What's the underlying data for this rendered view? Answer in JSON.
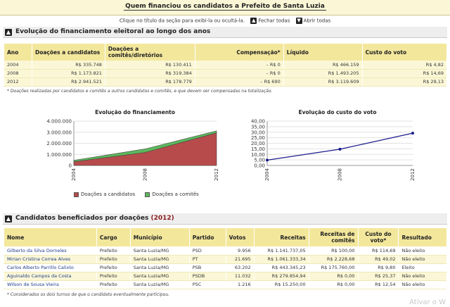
{
  "header": {
    "title": "Quem financiou os candidatos a Prefeito de Santa Luzia"
  },
  "hint": {
    "text": "Clique no título da seção para exibi-la ou ocultá-la.",
    "close_all": "Fechar todas",
    "open_all": "Abrir todas"
  },
  "section1": {
    "title": "Evolução do financiamento eleitoral ao longo dos anos",
    "columns": [
      "Ano",
      "Doações a candidatos",
      "Doações a comitês/diretórios",
      "Compensação*",
      "Líquido",
      "Custo do voto"
    ],
    "rows": [
      [
        "2004",
        "R$ 335.748",
        "R$ 130.411",
        "– R$ 0",
        "R$ 466.159",
        "R$ 4,82"
      ],
      [
        "2008",
        "R$ 1.173.821",
        "R$ 319.384",
        "– R$ 0",
        "R$ 1.493.205",
        "R$ 14,69"
      ],
      [
        "2012",
        "R$ 2.941.521",
        "R$ 178.779",
        "– R$ 690",
        "R$ 3.119.609",
        "R$ 29,13"
      ]
    ],
    "footnote": "* Doações realizadas por candidatos e comitês a outros candidatos e comitês, e que devem ser compensadas na totalização."
  },
  "chart_data": [
    {
      "type": "area",
      "title": "Evolução do financiamento",
      "x": [
        "2004",
        "2008",
        "2012"
      ],
      "series": [
        {
          "name": "Doações a candidatos",
          "values": [
            335748,
            1173821,
            2941521
          ],
          "color": "#b74b4b"
        },
        {
          "name": "Doações a comitês",
          "values": [
            130411,
            319384,
            178779
          ],
          "color": "#5cb85c"
        }
      ],
      "stacked": true,
      "ylim": [
        0,
        4000000
      ],
      "yticks": [
        "0",
        "1.000.000",
        "2.000.000",
        "3.000.000",
        "4.000.000"
      ],
      "grid": true,
      "legend": "bottom"
    },
    {
      "type": "line",
      "title": "Evolução do custo do voto",
      "x": [
        "2004",
        "2008",
        "2012"
      ],
      "series": [
        {
          "values": [
            4.82,
            14.69,
            29.13
          ],
          "color": "#1a1a8c"
        }
      ],
      "ylim": [
        0,
        40
      ],
      "yticks": [
        "0,00",
        "5,00",
        "10,00",
        "15,00",
        "20,00",
        "25,00",
        "30,00",
        "35,00",
        "40,00"
      ],
      "grid": true
    }
  ],
  "section2": {
    "title": "Candidatos beneficiados por doações",
    "year": "(2012)",
    "columns": [
      "Nome",
      "Cargo",
      "Município",
      "Partido",
      "Votos",
      "Receitas",
      "Receitas de comitês",
      "Custo do voto*",
      "Resultado"
    ],
    "rows": [
      [
        "Gilberto da Silva Dorneles",
        "Prefeito",
        "Santa Luzia/MG",
        "PSD",
        "9.956",
        "R$ 1.141.737,05",
        "R$ 100,00",
        "R$ 114,69",
        "Não eleito"
      ],
      [
        "Mirian Cristina Correa Alves",
        "Prefeito",
        "Santa Luzia/MG",
        "PT",
        "21.695",
        "R$ 1.061.333,34",
        "R$ 2.228,68",
        "R$ 49,02",
        "Não eleito"
      ],
      [
        "Carlos Alberto Parrillo Calixto",
        "Prefeito",
        "Santa Luzia/MG",
        "PSB",
        "63.202",
        "R$ 443.345,23",
        "R$ 175.760,00",
        "R$ 9,80",
        "Eleito"
      ],
      [
        "Aguinaldo Campos da Costa",
        "Prefeito",
        "Santa Luzia/MG",
        "PSDB",
        "11.032",
        "R$ 279.854,94",
        "R$ 0,00",
        "R$ 25,37",
        "Não eleito"
      ],
      [
        "Wilson de Sousa Vieira",
        "Prefeito",
        "Santa Luzia/MG",
        "PSC",
        "1.216",
        "R$ 15.250,00",
        "R$ 0,00",
        "R$ 12,54",
        "Não eleito"
      ]
    ],
    "footnote": "* Considerados os dois turnos de que o candidato eventualmente participou."
  },
  "watermark": "Ativar o W"
}
